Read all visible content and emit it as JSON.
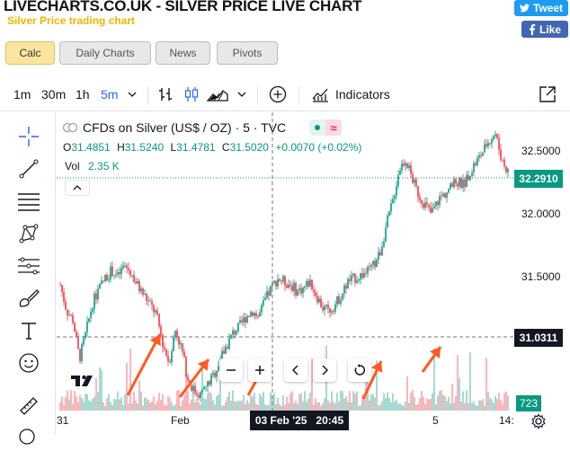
{
  "header": {
    "site_title": "LIVECHARTS.CO.UK - SILVER PRICE LIVE CHART",
    "subtitle": "Silver Price trading chart",
    "tweet_label": "Tweet",
    "like_label": "Like"
  },
  "tabs": [
    {
      "label": "Calc",
      "active": true
    },
    {
      "label": "Daily Charts",
      "active": false
    },
    {
      "label": "News",
      "active": false
    },
    {
      "label": "Pivots",
      "active": false
    }
  ],
  "toolbar": {
    "intervals": [
      "1m",
      "30m",
      "1h",
      "5m"
    ],
    "selected_interval": "5m",
    "indicators_label": "Indicators"
  },
  "legend": {
    "symbol": "CFDs on Silver (US$ / OZ) · 5 · TVC",
    "o_label": "O",
    "o_value": "31.4851",
    "h_label": "H",
    "h_value": "31.5240",
    "l_label": "L",
    "l_value": "31.4781",
    "c_label": "C",
    "c_value": "31.5020",
    "change": "+0.0070 (+0.02%)",
    "vol_label": "Vol",
    "vol_value": "2.35 K"
  },
  "price_axis": {
    "ticks": [
      "32.5000",
      "32.0000",
      "31.5000",
      "31.0000"
    ],
    "last_price": "32.2910",
    "crosshair_price": "31.0311",
    "volume_label": "723"
  },
  "time_axis": {
    "ticks": [
      "31",
      "Feb",
      "5",
      "14:"
    ],
    "crosshair_date": "03 Feb '25",
    "crosshair_time": "20:45"
  },
  "colors": {
    "up": "#089981",
    "down": "#f23645",
    "accent": "#2962ff",
    "annotation_arrow": "#ff5a1f"
  },
  "chart_data": {
    "type": "line",
    "title": "CFDs on Silver (US$ / OZ) · 5 · TVC",
    "ylim": [
      30.8,
      32.65
    ],
    "y_ticks": [
      32.5,
      32.0,
      31.5,
      31.0
    ],
    "x_ticks": [
      "31",
      "Feb",
      "5",
      "14:"
    ],
    "series": [
      {
        "name": "",
        "values": [
          31.58,
          31.42,
          31.36,
          31.12,
          31.28,
          31.46,
          31.55,
          31.62,
          31.67,
          31.63,
          31.7,
          31.66,
          31.58,
          31.52,
          31.46,
          31.4,
          31.22,
          31.1,
          31.3,
          31.18,
          30.98,
          30.92,
          30.9,
          30.96,
          31.02,
          31.12,
          31.2,
          31.28,
          31.32,
          31.38,
          31.42,
          31.38,
          31.48,
          31.56,
          31.62,
          31.6,
          31.58,
          31.54,
          31.56,
          31.6,
          31.52,
          31.44,
          31.42,
          31.46,
          31.52,
          31.6,
          31.62,
          31.64,
          31.66,
          31.7,
          31.78,
          31.95,
          32.1,
          32.3,
          32.36,
          32.24,
          32.14,
          32.08,
          32.02,
          32.1,
          32.14,
          32.18,
          32.22,
          32.2,
          32.28,
          32.34,
          32.4,
          32.48,
          32.52,
          32.36,
          32.28
        ]
      }
    ]
  }
}
